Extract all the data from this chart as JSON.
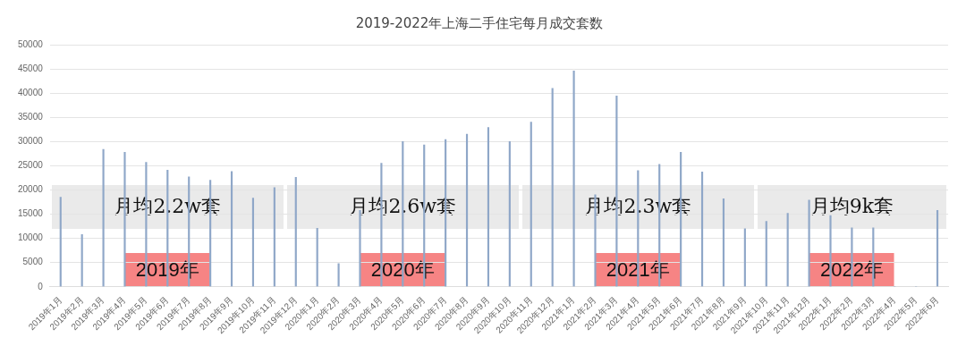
{
  "chart_data": {
    "type": "bar",
    "title": "2019-2022年上海二手住宅每月成交套数",
    "categories": [
      "2019年1月",
      "2019年2月",
      "2019年3月",
      "2019年4月",
      "2019年5月",
      "2019年6月",
      "2019年7月",
      "2019年8月",
      "2019年9月",
      "2019年10月",
      "2019年11月",
      "2019年12月",
      "2020年1月",
      "2020年2月",
      "2020年3月",
      "2020年4月",
      "2020年5月",
      "2020年6月",
      "2020年7月",
      "2020年8月",
      "2020年9月",
      "2020年10月",
      "2020年11月",
      "2020年12月",
      "2021年1月",
      "2021年2月",
      "2021年3月",
      "2021年4月",
      "2021年5月",
      "2021年6月",
      "2021年7月",
      "2021年8月",
      "2021年9月",
      "2021年10月",
      "2021年11月",
      "2021年12月",
      "2022年1月",
      "2022年2月",
      "2022年3月",
      "2022年4月",
      "2022年5月",
      "2022年6月"
    ],
    "values": [
      18500,
      10800,
      28400,
      27800,
      25700,
      24100,
      22700,
      22000,
      23800,
      18300,
      20500,
      22600,
      12100,
      4800,
      15800,
      25500,
      30000,
      29300,
      30400,
      31500,
      32900,
      30000,
      34000,
      41000,
      44600,
      19000,
      39400,
      24000,
      25300,
      27800,
      23700,
      18200,
      12000,
      13500,
      15200,
      17900,
      14700,
      12200,
      12200,
      0,
      0,
      15800
    ],
    "color": "#8fa7c8",
    "ylim": [
      0,
      50000
    ],
    "yticks": [
      0,
      5000,
      10000,
      15000,
      20000,
      25000,
      30000,
      35000,
      40000,
      45000,
      50000
    ],
    "grid": "y",
    "annotations": [
      "月均2.2w套",
      "月均2.6w套",
      "月均2.3w套",
      "月均9k套",
      "2019年",
      "2020年",
      "2021年",
      "2022年"
    ]
  }
}
